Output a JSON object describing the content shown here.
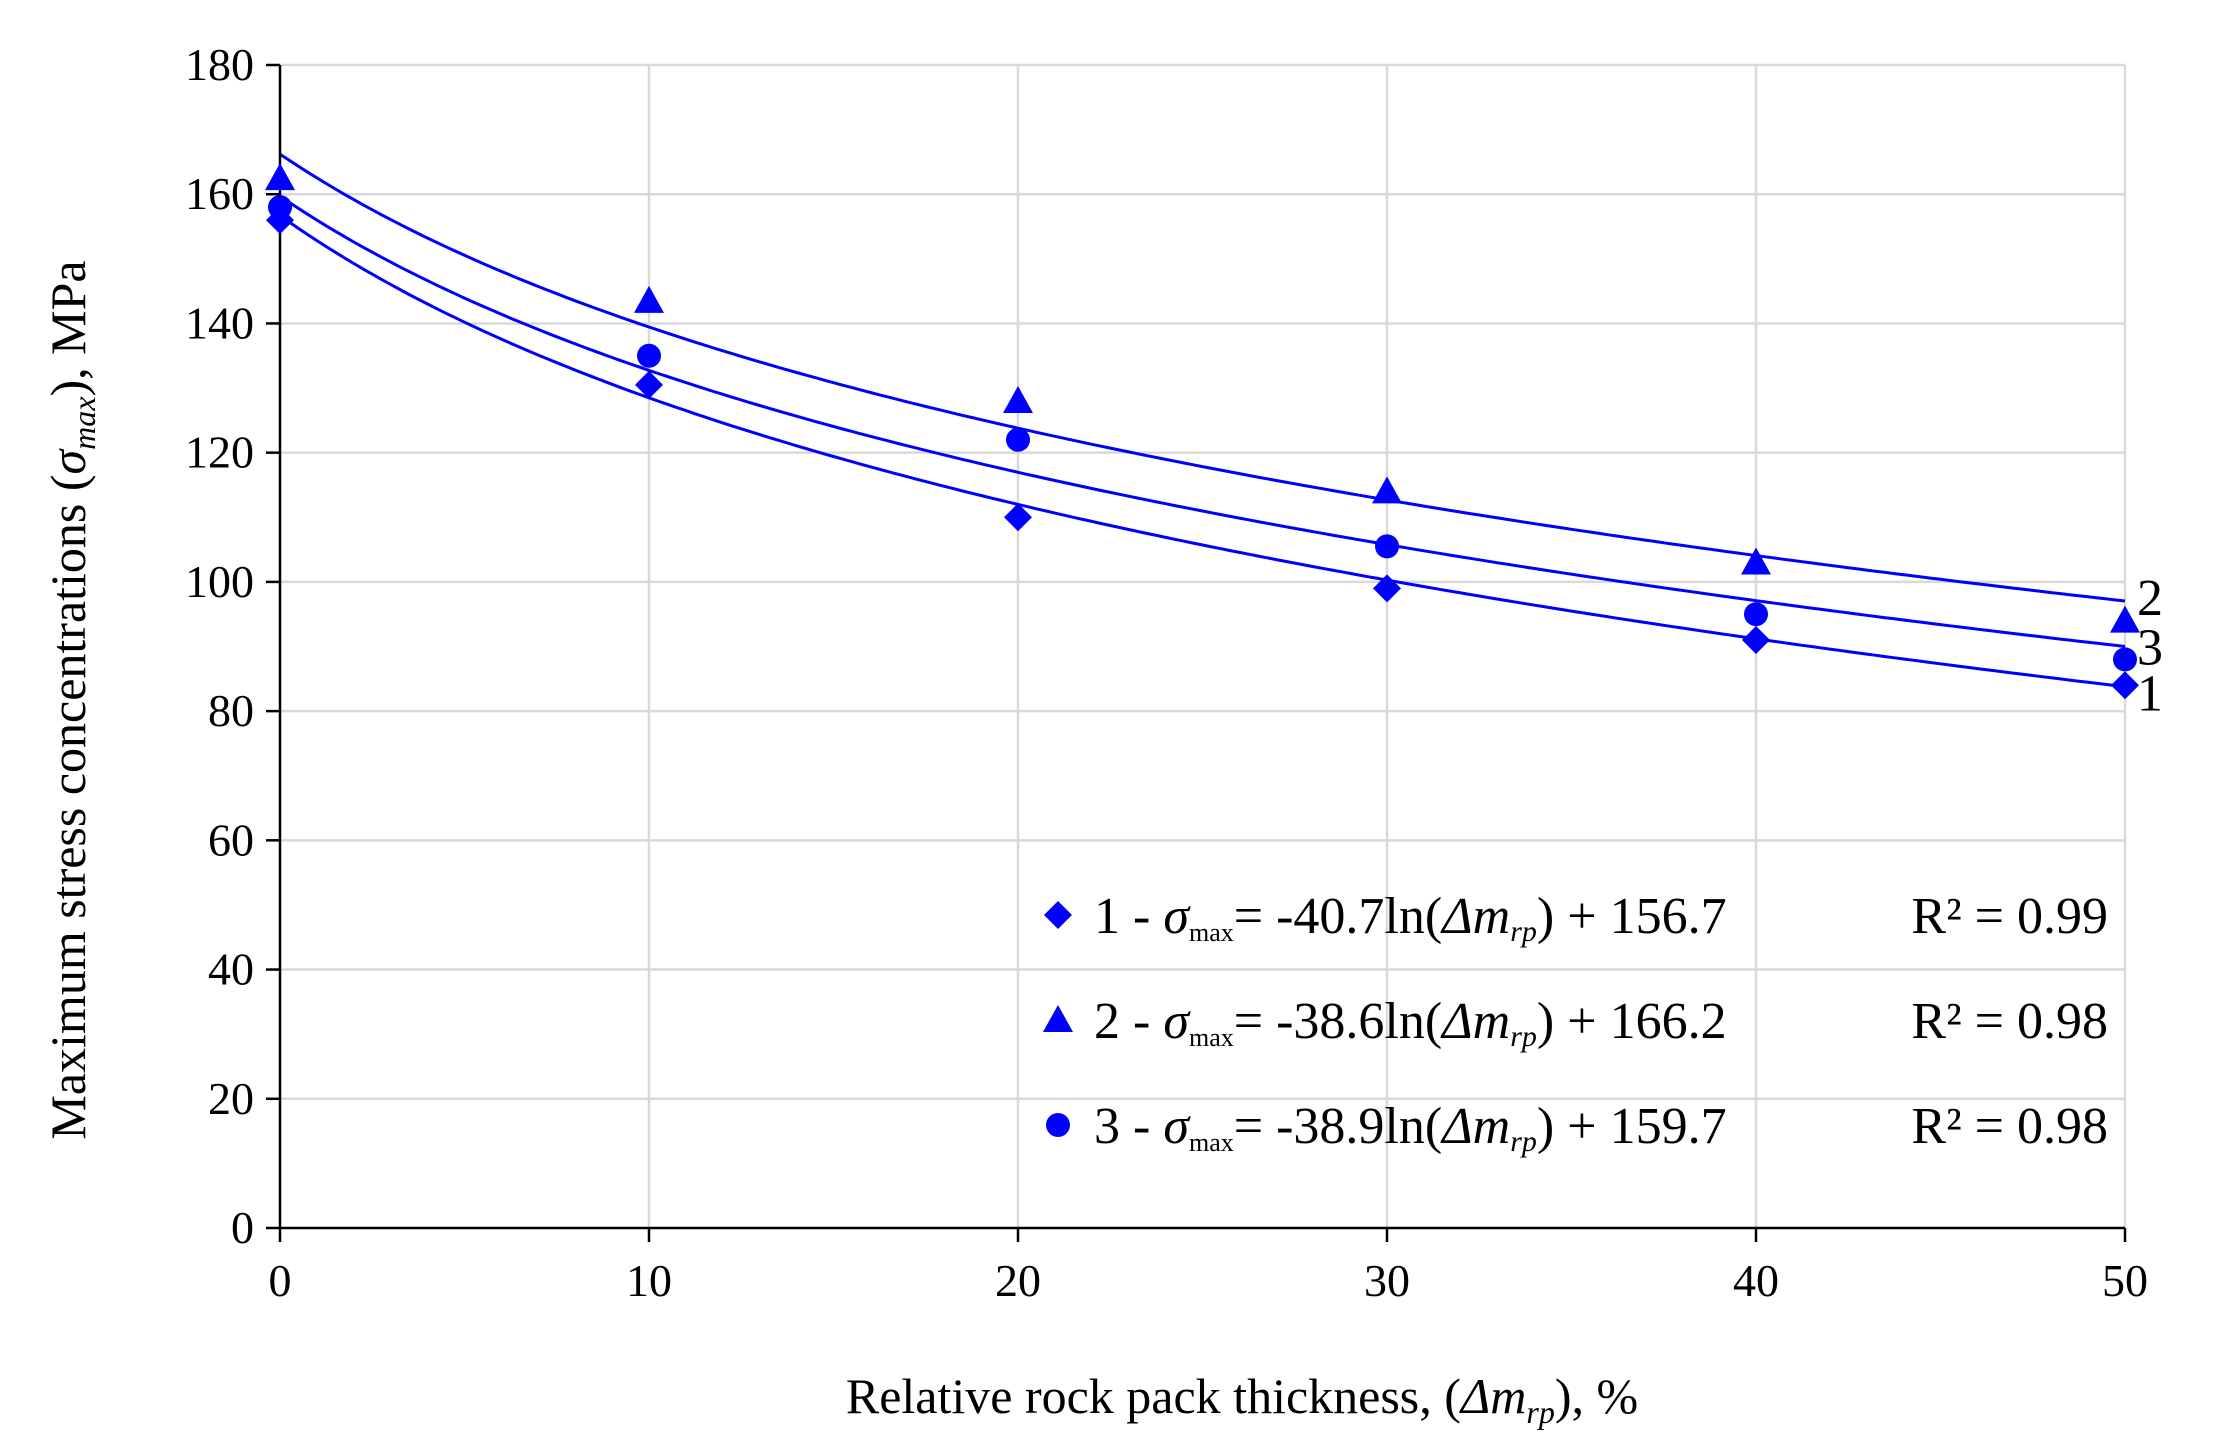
{
  "chart_data": {
    "type": "scatter",
    "title": "",
    "xlabel": {
      "prefix": "Relative rock pack thickness, (",
      "symbol": "Δm",
      "subscript": "rp",
      "suffix": "), %"
    },
    "ylabel": {
      "prefix": "Maximum stress concentrations (",
      "symbol": "σ",
      "subscript": "max",
      "suffix": "), MPa"
    },
    "xlim": [
      0,
      50
    ],
    "ylim": [
      0,
      180
    ],
    "xticks": [
      0,
      10,
      20,
      30,
      40,
      50
    ],
    "yticks": [
      0,
      20,
      40,
      60,
      80,
      100,
      120,
      140,
      160,
      180
    ],
    "grid": true,
    "color": "#0000ff",
    "legend_position": "bottom-right",
    "x": [
      0,
      10,
      20,
      30,
      40,
      50
    ],
    "series": [
      {
        "name": "1",
        "marker": "diamond",
        "values": [
          156,
          130.5,
          110,
          99,
          91,
          84
        ],
        "trend": {
          "type": "logarithmic",
          "a": -40.7,
          "b": 156.7,
          "r2": "0.99"
        },
        "legend": {
          "label": "1 - ",
          "sym": "σ",
          "sub": "max",
          "eq": "= -40.7ln(",
          "var": "Δm",
          "varsub": "rp",
          "tail": ") + 156.7",
          "r2": "R² = 0.99"
        },
        "end_label": "1"
      },
      {
        "name": "2",
        "marker": "triangle",
        "values": [
          162.5,
          143.5,
          128,
          114,
          103,
          94
        ],
        "trend": {
          "type": "logarithmic",
          "a": -38.6,
          "b": 166.2,
          "r2": "0.98"
        },
        "legend": {
          "label": "2 - ",
          "sym": "σ",
          "sub": "max",
          "eq": "= -38.6ln(",
          "var": "Δm",
          "varsub": "rp",
          "tail": ") + 166.2",
          "r2": "R² = 0.98"
        },
        "end_label": "2"
      },
      {
        "name": "3",
        "marker": "circle",
        "values": [
          158,
          135,
          122,
          105.5,
          95,
          88
        ],
        "trend": {
          "type": "logarithmic",
          "a": -38.9,
          "b": 159.7,
          "r2": "0.98"
        },
        "legend": {
          "label": "3 - ",
          "sym": "σ",
          "sub": "max",
          "eq": "= -38.9ln(",
          "var": "Δm",
          "varsub": "rp",
          "tail": ") + 159.7",
          "r2": "R² = 0.98"
        },
        "end_label": "3"
      }
    ]
  }
}
